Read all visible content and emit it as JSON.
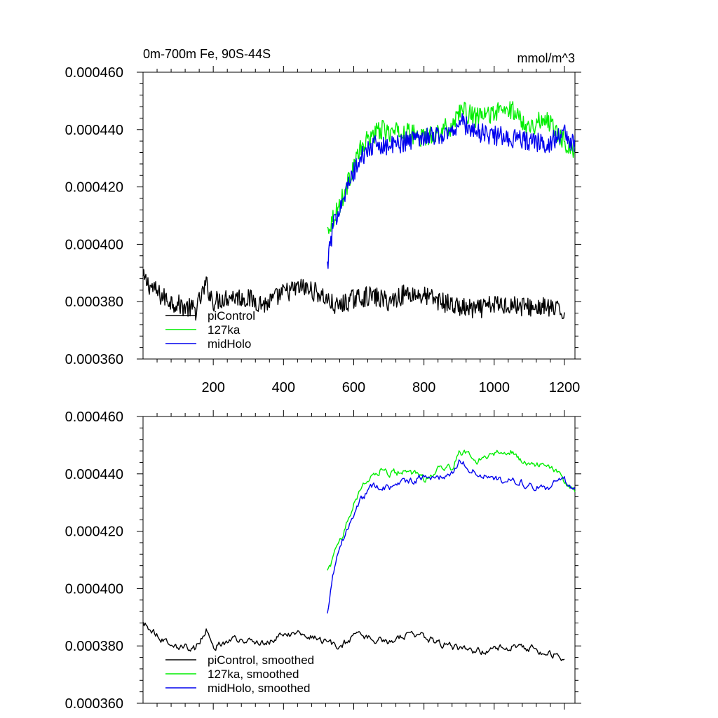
{
  "chart_data": [
    {
      "type": "line",
      "title": "0m-700m Fe, 90S-44S",
      "units": "mmol/m^3",
      "xlim": [
        0,
        1230
      ],
      "ylim": [
        0.00036,
        0.00046
      ],
      "xticks": [
        200,
        400,
        600,
        800,
        1000,
        1200
      ],
      "xtick_labels": [
        "200",
        "400",
        "600",
        "800",
        "1000",
        "1200"
      ],
      "yticks": [
        0.00036,
        0.00038,
        0.0004,
        0.00042,
        0.00044,
        0.00046
      ],
      "ytick_labels": [
        "0.000360",
        "0.000380",
        "0.000400",
        "0.000420",
        "0.000440",
        "0.000460"
      ],
      "legend_position": "bottom-left",
      "grid": false,
      "smoothed": false,
      "series": [
        {
          "name": "piControl",
          "color": "#000000",
          "x_range": [
            0,
            1200
          ],
          "points": [
            [
              0,
              0.000388
            ],
            [
              50,
              0.000382
            ],
            [
              100,
              0.000379
            ],
            [
              150,
              0.000377
            ],
            [
              180,
              0.000386
            ],
            [
              200,
              0.00038
            ],
            [
              250,
              0.000382
            ],
            [
              300,
              0.000381
            ],
            [
              350,
              0.000379
            ],
            [
              400,
              0.000383
            ],
            [
              450,
              0.000385
            ],
            [
              500,
              0.000383
            ],
            [
              550,
              0.000378
            ],
            [
              600,
              0.000381
            ],
            [
              650,
              0.000382
            ],
            [
              700,
              0.00038
            ],
            [
              750,
              0.000383
            ],
            [
              800,
              0.000382
            ],
            [
              850,
              0.00038
            ],
            [
              900,
              0.000378
            ],
            [
              950,
              0.000377
            ],
            [
              1000,
              0.000379
            ],
            [
              1050,
              0.000379
            ],
            [
              1100,
              0.000378
            ],
            [
              1150,
              0.000378
            ],
            [
              1200,
              0.000376
            ]
          ]
        },
        {
          "name": "127ka",
          "color": "#00ee00",
          "x_range": [
            525,
            1230
          ],
          "points": [
            [
              525,
              0.000405
            ],
            [
              540,
              0.000409
            ],
            [
              560,
              0.000414
            ],
            [
              580,
              0.00042
            ],
            [
              600,
              0.000428
            ],
            [
              620,
              0.000433
            ],
            [
              650,
              0.000438
            ],
            [
              680,
              0.00044
            ],
            [
              700,
              0.000439
            ],
            [
              750,
              0.000439
            ],
            [
              800,
              0.000437
            ],
            [
              850,
              0.00044
            ],
            [
              880,
              0.000441
            ],
            [
              900,
              0.000447
            ],
            [
              950,
              0.000444
            ],
            [
              1000,
              0.000446
            ],
            [
              1050,
              0.000447
            ],
            [
              1100,
              0.000441
            ],
            [
              1150,
              0.000444
            ],
            [
              1200,
              0.000436
            ],
            [
              1230,
              0.000432
            ]
          ]
        },
        {
          "name": "midHolo",
          "color": "#0000ee",
          "x_range": [
            525,
            1230
          ],
          "points": [
            [
              525,
              0.000393
            ],
            [
              540,
              0.000405
            ],
            [
              560,
              0.000414
            ],
            [
              580,
              0.000419
            ],
            [
              600,
              0.000425
            ],
            [
              620,
              0.00043
            ],
            [
              650,
              0.000434
            ],
            [
              680,
              0.000435
            ],
            [
              700,
              0.000434
            ],
            [
              750,
              0.000436
            ],
            [
              800,
              0.000438
            ],
            [
              850,
              0.000438
            ],
            [
              880,
              0.000439
            ],
            [
              900,
              0.000443
            ],
            [
              950,
              0.000439
            ],
            [
              1000,
              0.000438
            ],
            [
              1050,
              0.000437
            ],
            [
              1100,
              0.000436
            ],
            [
              1150,
              0.000435
            ],
            [
              1200,
              0.000439
            ],
            [
              1230,
              0.000434
            ]
          ]
        }
      ]
    },
    {
      "type": "line",
      "title": "",
      "xlim": [
        0,
        1230
      ],
      "ylim": [
        0.00036,
        0.00046
      ],
      "xticks": [
        200,
        400,
        600,
        800,
        1000,
        1200
      ],
      "xtick_labels": [],
      "yticks": [
        0.00036,
        0.00038,
        0.0004,
        0.00042,
        0.00044,
        0.00046
      ],
      "ytick_labels": [
        "0.000360",
        "0.000380",
        "0.000400",
        "0.000420",
        "0.000440",
        "0.000460"
      ],
      "legend_position": "bottom-left",
      "grid": false,
      "smoothed": true,
      "series": [
        {
          "name": "piControl, smoothed",
          "color": "#000000",
          "x_range": [
            0,
            1200
          ],
          "points": [
            [
              0,
              0.000388
            ],
            [
              50,
              0.000383
            ],
            [
              100,
              0.00038
            ],
            [
              150,
              0.000379
            ],
            [
              180,
              0.000386
            ],
            [
              200,
              0.00038
            ],
            [
              250,
              0.000382
            ],
            [
              300,
              0.000382
            ],
            [
              350,
              0.000381
            ],
            [
              400,
              0.000384
            ],
            [
              450,
              0.000384
            ],
            [
              500,
              0.000383
            ],
            [
              550,
              0.000379
            ],
            [
              600,
              0.000383
            ],
            [
              650,
              0.000383
            ],
            [
              700,
              0.000381
            ],
            [
              750,
              0.000384
            ],
            [
              800,
              0.000383
            ],
            [
              850,
              0.000381
            ],
            [
              900,
              0.000379
            ],
            [
              950,
              0.000378
            ],
            [
              1000,
              0.000379
            ],
            [
              1050,
              0.00038
            ],
            [
              1100,
              0.000379
            ],
            [
              1150,
              0.000378
            ],
            [
              1200,
              0.000376
            ]
          ]
        },
        {
          "name": "127ka, smoothed",
          "color": "#00ee00",
          "x_range": [
            525,
            1230
          ],
          "points": [
            [
              525,
              0.000406
            ],
            [
              540,
              0.00041
            ],
            [
              560,
              0.000416
            ],
            [
              580,
              0.000423
            ],
            [
              600,
              0.00043
            ],
            [
              620,
              0.000435
            ],
            [
              650,
              0.000439
            ],
            [
              680,
              0.000442
            ],
            [
              700,
              0.00044
            ],
            [
              750,
              0.000441
            ],
            [
              800,
              0.000438
            ],
            [
              850,
              0.000442
            ],
            [
              880,
              0.000442
            ],
            [
              900,
              0.000448
            ],
            [
              950,
              0.000445
            ],
            [
              1000,
              0.000447
            ],
            [
              1050,
              0.000448
            ],
            [
              1100,
              0.000443
            ],
            [
              1150,
              0.000444
            ],
            [
              1200,
              0.000437
            ],
            [
              1230,
              0.000433
            ]
          ]
        },
        {
          "name": "midHolo, smoothed",
          "color": "#0000ee",
          "x_range": [
            525,
            1230
          ],
          "points": [
            [
              525,
              0.000391
            ],
            [
              540,
              0.000405
            ],
            [
              560,
              0.000415
            ],
            [
              580,
              0.00042
            ],
            [
              600,
              0.000426
            ],
            [
              620,
              0.000431
            ],
            [
              650,
              0.000435
            ],
            [
              680,
              0.000436
            ],
            [
              700,
              0.000435
            ],
            [
              750,
              0.000437
            ],
            [
              800,
              0.000439
            ],
            [
              850,
              0.000439
            ],
            [
              880,
              0.00044
            ],
            [
              900,
              0.000445
            ],
            [
              950,
              0.00044
            ],
            [
              1000,
              0.000438
            ],
            [
              1050,
              0.000438
            ],
            [
              1100,
              0.000436
            ],
            [
              1150,
              0.000435
            ],
            [
              1200,
              0.000438
            ],
            [
              1230,
              0.000434
            ]
          ]
        }
      ]
    }
  ]
}
